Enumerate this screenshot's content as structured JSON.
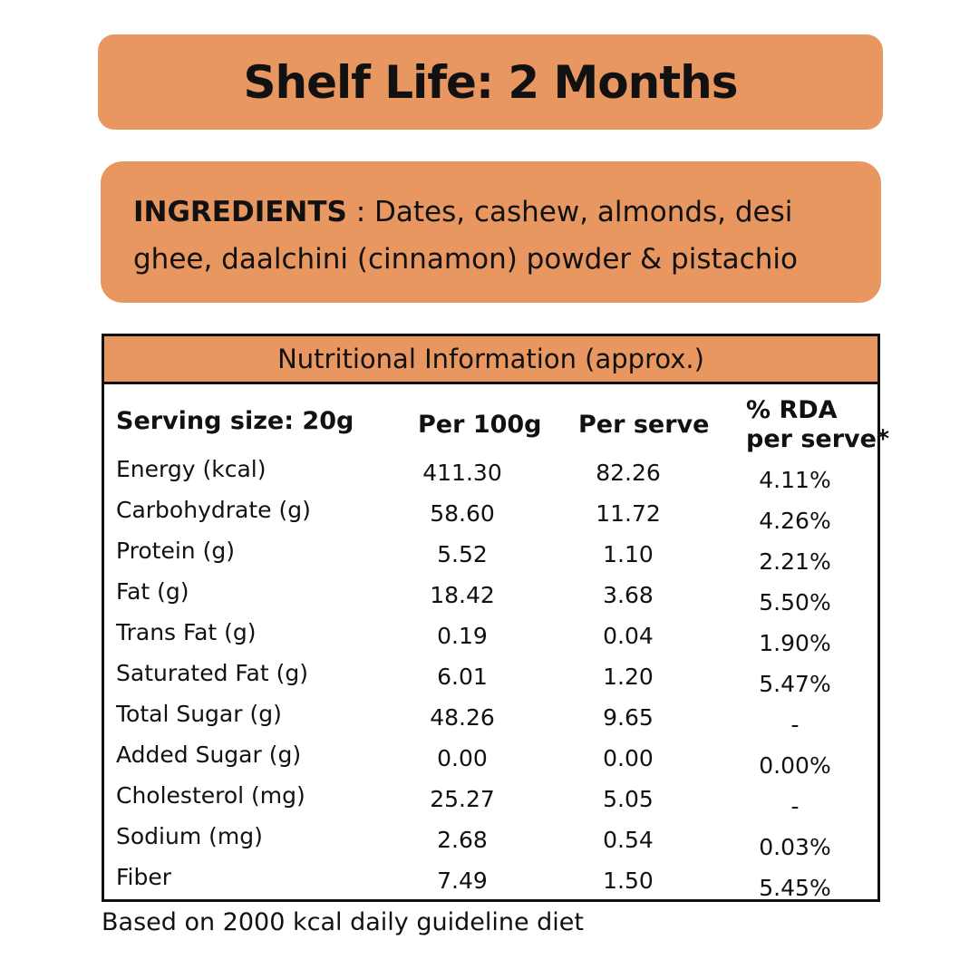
{
  "shelf_life": {
    "title": "Shelf Life: 2 Months"
  },
  "ingredients": {
    "label": "INGREDIENTS",
    "separator": " : ",
    "text": "Dates, cashew, almonds, desi ghee, daalchini (cinnamon) powder & pistachio"
  },
  "nutrition": {
    "heading": "Nutritional Information (approx.)",
    "columns": {
      "serving": "Serving size: 20g",
      "per_100g": "Per 100g",
      "per_serve": "Per serve",
      "rda_line1": "% RDA",
      "rda_line2": "per serve*"
    },
    "rows": [
      {
        "name": "Energy (kcal)",
        "per_100g": "411.30",
        "per_serve": "82.26",
        "rda": "4.11%"
      },
      {
        "name": "Carbohydrate (g)",
        "per_100g": "58.60",
        "per_serve": "11.72",
        "rda": "4.26%"
      },
      {
        "name": "Protein (g)",
        "per_100g": "5.52",
        "per_serve": "1.10",
        "rda": "2.21%"
      },
      {
        "name": "Fat (g)",
        "per_100g": "18.42",
        "per_serve": "3.68",
        "rda": "5.50%"
      },
      {
        "name": "Trans Fat (g)",
        "per_100g": "0.19",
        "per_serve": "0.04",
        "rda": "1.90%"
      },
      {
        "name": "Saturated Fat (g)",
        "per_100g": "6.01",
        "per_serve": "1.20",
        "rda": "5.47%"
      },
      {
        "name": "Total Sugar (g)",
        "per_100g": "48.26",
        "per_serve": "9.65",
        "rda": "-"
      },
      {
        "name": "Added Sugar (g)",
        "per_100g": "0.00",
        "per_serve": "0.00",
        "rda": "0.00%"
      },
      {
        "name": "Cholesterol (mg)",
        "per_100g": "25.27",
        "per_serve": "5.05",
        "rda": "-"
      },
      {
        "name": "Sodium (mg)",
        "per_100g": "2.68",
        "per_serve": "0.54",
        "rda": "0.03%"
      },
      {
        "name": "Fiber",
        "per_100g": "7.49",
        "per_serve": "1.50",
        "rda": "5.45%"
      }
    ]
  },
  "footnote": "Based on 2000 kcal daily guideline diet",
  "colors": {
    "accent": "#e99760",
    "text": "#111111",
    "background": "#ffffff"
  }
}
